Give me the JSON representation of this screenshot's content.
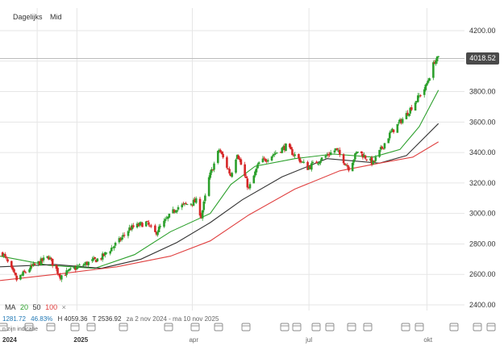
{
  "header": {
    "interval": "Dagelijks",
    "price_type": "Mid"
  },
  "current_price_badge": "4018.52",
  "legend": {
    "ma_label": "MA",
    "ma_periods": [
      "20",
      "50",
      "100"
    ],
    "close_symbol": "×",
    "colors": {
      "ma20": "#2ca02c",
      "ma50": "#333333",
      "ma100": "#e04040"
    }
  },
  "stats": {
    "change": "1281.72",
    "change_pct": "46.83%",
    "high": "H 4059.36",
    "low": "T 2536.92",
    "period": "za 2 nov 2024 - ma 10 nov 2025"
  },
  "hint_text": "n zijn indicatie",
  "colors": {
    "up": "#2ca02c",
    "down": "#d62728",
    "grid": "#e6e6e6",
    "badge": "#4a4a4a"
  },
  "chart_data": {
    "type": "candlestick",
    "y_ticks": [
      "4200.00",
      "4000.00",
      "3800.00",
      "3600.00",
      "3400.00",
      "3200.00",
      "3000.00",
      "2800.00",
      "2600.00",
      "2400.00"
    ],
    "ylim": [
      2330,
      4240
    ],
    "x_tick_labels": [
      "2024",
      "2025",
      "apr",
      "jul",
      "okt"
    ],
    "x_tick_dates": [
      "2024-12-01",
      "2025-01-01",
      "2025-04-01",
      "2025-07-01",
      "2025-10-01"
    ],
    "xlim": [
      "2024-11-02",
      "2025-11-10"
    ],
    "grid": true,
    "ohlc_anchors": [
      {
        "date": "2024-11-04",
        "close": 2740
      },
      {
        "date": "2024-11-15",
        "close": 2565
      },
      {
        "date": "2024-11-25",
        "close": 2640
      },
      {
        "date": "2024-12-10",
        "close": 2715
      },
      {
        "date": "2024-12-19",
        "close": 2590
      },
      {
        "date": "2025-01-02",
        "close": 2650
      },
      {
        "date": "2025-01-20",
        "close": 2710
      },
      {
        "date": "2025-02-03",
        "close": 2820
      },
      {
        "date": "2025-02-11",
        "close": 2900
      },
      {
        "date": "2025-02-24",
        "close": 2940
      },
      {
        "date": "2025-03-03",
        "close": 2870
      },
      {
        "date": "2025-03-20",
        "close": 3040
      },
      {
        "date": "2025-04-04",
        "close": 3080
      },
      {
        "date": "2025-04-08",
        "close": 2980
      },
      {
        "date": "2025-04-14",
        "close": 3230
      },
      {
        "date": "2025-04-22",
        "close": 3420
      },
      {
        "date": "2025-05-01",
        "close": 3250
      },
      {
        "date": "2025-05-06",
        "close": 3400
      },
      {
        "date": "2025-05-15",
        "close": 3160
      },
      {
        "date": "2025-05-23",
        "close": 3330
      },
      {
        "date": "2025-06-13",
        "close": 3440
      },
      {
        "date": "2025-06-30",
        "close": 3300
      },
      {
        "date": "2025-07-22",
        "close": 3420
      },
      {
        "date": "2025-08-01",
        "close": 3300
      },
      {
        "date": "2025-08-08",
        "close": 3410
      },
      {
        "date": "2025-08-20",
        "close": 3330
      },
      {
        "date": "2025-09-02",
        "close": 3520
      },
      {
        "date": "2025-09-15",
        "close": 3650
      },
      {
        "date": "2025-09-30",
        "close": 3830
      },
      {
        "date": "2025-10-07",
        "close": 4000
      },
      {
        "date": "2025-10-10",
        "close": 4018.52
      }
    ],
    "ma_series": [
      {
        "name": "20",
        "points": [
          [
            "2024-11-02",
            2720
          ],
          [
            "2024-12-10",
            2660
          ],
          [
            "2025-01-15",
            2640
          ],
          [
            "2025-02-15",
            2730
          ],
          [
            "2025-03-15",
            2880
          ],
          [
            "2025-04-15",
            3000
          ],
          [
            "2025-05-01",
            3190
          ],
          [
            "2025-05-20",
            3310
          ],
          [
            "2025-06-20",
            3360
          ],
          [
            "2025-07-20",
            3390
          ],
          [
            "2025-08-20",
            3370
          ],
          [
            "2025-09-10",
            3420
          ],
          [
            "2025-09-25",
            3570
          ],
          [
            "2025-10-10",
            3810
          ]
        ]
      },
      {
        "name": "50",
        "points": [
          [
            "2024-11-02",
            2650
          ],
          [
            "2024-12-15",
            2665
          ],
          [
            "2025-01-20",
            2640
          ],
          [
            "2025-02-20",
            2700
          ],
          [
            "2025-03-20",
            2810
          ],
          [
            "2025-04-15",
            2940
          ],
          [
            "2025-05-10",
            3090
          ],
          [
            "2025-06-10",
            3240
          ],
          [
            "2025-07-15",
            3360
          ],
          [
            "2025-08-25",
            3330
          ],
          [
            "2025-09-15",
            3380
          ],
          [
            "2025-10-10",
            3590
          ]
        ]
      },
      {
        "name": "100",
        "points": [
          [
            "2024-11-02",
            2560
          ],
          [
            "2024-12-20",
            2605
          ],
          [
            "2025-02-01",
            2650
          ],
          [
            "2025-03-15",
            2720
          ],
          [
            "2025-04-15",
            2820
          ],
          [
            "2025-05-15",
            2990
          ],
          [
            "2025-06-20",
            3160
          ],
          [
            "2025-07-25",
            3280
          ],
          [
            "2025-08-25",
            3330
          ],
          [
            "2025-09-20",
            3370
          ],
          [
            "2025-10-10",
            3470
          ]
        ]
      }
    ]
  }
}
